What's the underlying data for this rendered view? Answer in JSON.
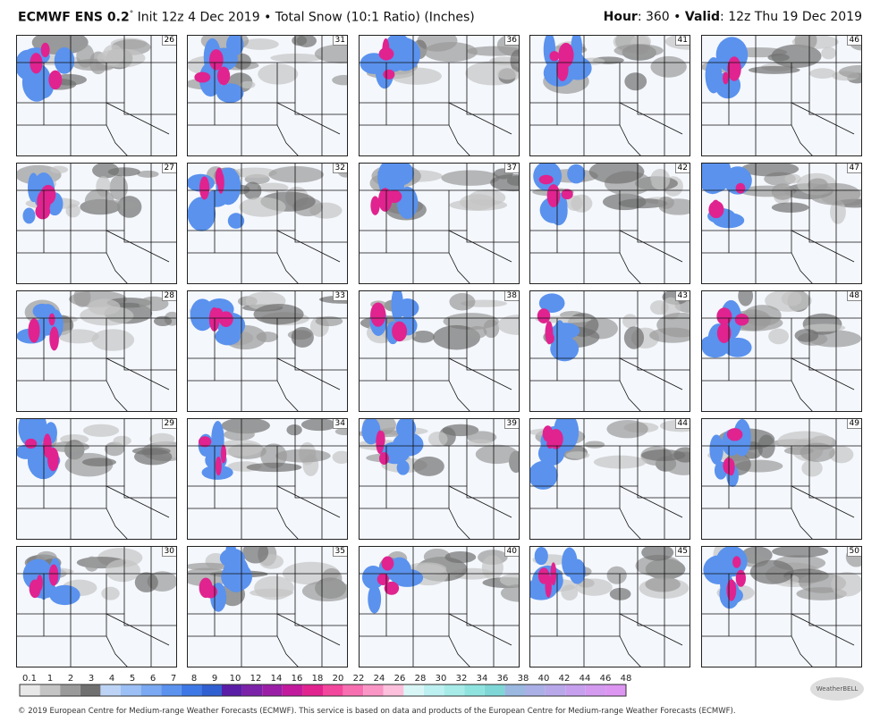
{
  "header": {
    "model": "ECMWF ENS 0.2",
    "degree": "°",
    "description": "Init 12z 4 Dec 2019 • Total Snow (10:1 Ratio) (Inches)",
    "hour_label": "Hour",
    "hour_value": ": 360 •",
    "valid_label": "Valid",
    "valid_value": ": 12z Thu 19 Dec 2019"
  },
  "panels": [
    "26",
    "27",
    "28",
    "29",
    "30",
    "31",
    "32",
    "33",
    "34",
    "35",
    "36",
    "37",
    "38",
    "39",
    "40",
    "41",
    "42",
    "43",
    "44",
    "45",
    "46",
    "47",
    "48",
    "49",
    "50"
  ],
  "colorbar": {
    "labels": [
      "0.1",
      "1",
      "2",
      "3",
      "4",
      "5",
      "6",
      "7",
      "8",
      "9",
      "10",
      "12",
      "14",
      "16",
      "18",
      "20",
      "22",
      "24",
      "26",
      "28",
      "30",
      "32",
      "34",
      "36",
      "38",
      "40",
      "42",
      "44",
      "46",
      "48"
    ],
    "colors": [
      "#e8e8e8",
      "#c4c4c4",
      "#9a9a9a",
      "#707070",
      "#bcd3f5",
      "#9cc0f5",
      "#7aa8f2",
      "#5a92ee",
      "#3d78e6",
      "#2f5fd0",
      "#5a1da6",
      "#7a22a8",
      "#9a1ea6",
      "#c21a9c",
      "#e0238f",
      "#f2479c",
      "#f76fb1",
      "#f996c6",
      "#fcc0dc",
      "#d9f6f6",
      "#bdf0f0",
      "#a6ebe8",
      "#8fe3df",
      "#7fd6d6",
      "#9ab8e0",
      "#aab0e6",
      "#b8a8ea",
      "#c6a0ee",
      "#d39af0",
      "#dd95f2"
    ]
  },
  "footer": "© 2019 European Centre for Medium-range Weather Forecasts (ECMWF). This service is based on data and products of the European Centre for Medium-range Weather Forecasts (ECMWF).",
  "logo": "WeatherBELL"
}
